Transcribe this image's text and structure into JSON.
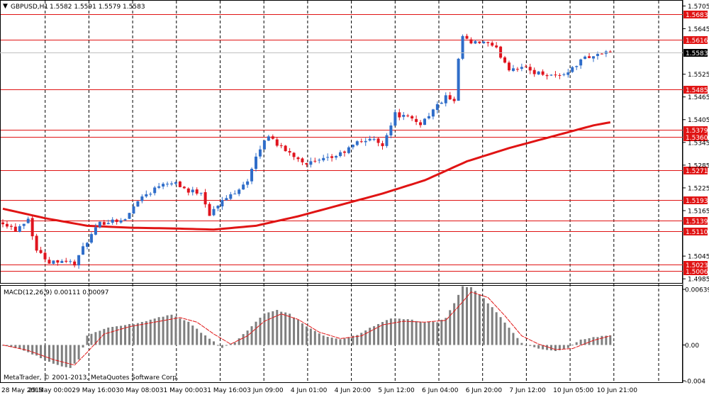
{
  "header": {
    "arrow": "▼",
    "symbol": "GBPUSD,H1",
    "ohlc": "1.5582 1.5591 1.5579 1.5583"
  },
  "macd": {
    "label": "MACD(12,26,9) 0.00111 0.00097"
  },
  "copyright": "MetaTrader, © 2001-2013, MetaQuotes Software Corp.",
  "colors": {
    "bull": "#2f6dc9",
    "bear": "#e0141e",
    "level_line": "#e01414",
    "ma": "#e01414",
    "histogram": "#7f7f7f",
    "signal": "#e01414",
    "current_price_bg": "#000000"
  },
  "chart_data": [
    {
      "type": "candlestick",
      "title": "GBPUSD,H1",
      "y_ticks": [
        "1.5705",
        "1.5645",
        "1.5525",
        "1.5465",
        "1.5405",
        "1.5345",
        "1.5285",
        "1.5225",
        "1.5165",
        "1.5045",
        "1.4985"
      ],
      "ylim": [
        1.4976,
        1.5717
      ],
      "current_price": "1.5583",
      "levels": [
        "1.5683",
        "1.5616",
        "1.5485",
        "1.5379",
        "1.5360",
        "1.5271",
        "1.5193",
        "1.5139",
        "1.5110",
        "1.5023",
        "1.5006"
      ],
      "x_labels": [
        "28 May 2013",
        "29 May 00:00",
        "29 May 16:00",
        "30 May 08:00",
        "31 May 00:00",
        "31 May 16:00",
        "3 Jun 09:00",
        "4 Jun 01:00",
        "4 Jun 20:00",
        "5 Jun 12:00",
        "6 Jun 04:00",
        "6 Jun 20:00",
        "7 Jun 12:00",
        "10 Jun 05:00",
        "10 Jun 21:00"
      ],
      "price_path": [
        [
          0,
          1.5135
        ],
        [
          3,
          1.5115
        ],
        [
          6,
          1.5145
        ],
        [
          8,
          1.506
        ],
        [
          11,
          1.503
        ],
        [
          14,
          1.5035
        ],
        [
          17,
          1.5025
        ],
        [
          20,
          1.5085
        ],
        [
          23,
          1.513
        ],
        [
          26,
          1.514
        ],
        [
          29,
          1.514
        ],
        [
          32,
          1.5195
        ],
        [
          35,
          1.5215
        ],
        [
          38,
          1.524
        ],
        [
          41,
          1.524
        ],
        [
          44,
          1.5215
        ],
        [
          47,
          1.5215
        ],
        [
          49,
          1.5155
        ],
        [
          52,
          1.519
        ],
        [
          55,
          1.5215
        ],
        [
          58,
          1.5245
        ],
        [
          61,
          1.533
        ],
        [
          63,
          1.5365
        ],
        [
          66,
          1.533
        ],
        [
          69,
          1.531
        ],
        [
          72,
          1.529
        ],
        [
          75,
          1.5295
        ],
        [
          78,
          1.5305
        ],
        [
          81,
          1.532
        ],
        [
          84,
          1.5345
        ],
        [
          87,
          1.5355
        ],
        [
          90,
          1.534
        ],
        [
          93,
          1.542
        ],
        [
          96,
          1.541
        ],
        [
          99,
          1.5395
        ],
        [
          102,
          1.543
        ],
        [
          105,
          1.5465
        ],
        [
          107,
          1.545
        ],
        [
          108,
          1.556
        ],
        [
          109,
          1.5625
        ],
        [
          111,
          1.5605
        ],
        [
          114,
          1.561
        ],
        [
          117,
          1.559
        ],
        [
          120,
          1.554
        ],
        [
          123,
          1.5545
        ],
        [
          126,
          1.553
        ],
        [
          129,
          1.5525
        ],
        [
          132,
          1.552
        ],
        [
          135,
          1.554
        ],
        [
          138,
          1.557
        ],
        [
          141,
          1.5575
        ],
        [
          143,
          1.5585
        ],
        [
          144,
          1.5583
        ]
      ],
      "ma_path": [
        [
          0,
          1.517
        ],
        [
          10,
          1.5145
        ],
        [
          20,
          1.5125
        ],
        [
          30,
          1.512
        ],
        [
          40,
          1.5118
        ],
        [
          50,
          1.5115
        ],
        [
          60,
          1.5125
        ],
        [
          70,
          1.515
        ],
        [
          80,
          1.518
        ],
        [
          90,
          1.521
        ],
        [
          100,
          1.5245
        ],
        [
          110,
          1.5295
        ],
        [
          120,
          1.533
        ],
        [
          130,
          1.536
        ],
        [
          140,
          1.539
        ],
        [
          144,
          1.5398
        ]
      ]
    },
    {
      "type": "bar",
      "title": "MACD(12,26,9) 0.00111 0.00097",
      "y_ticks": [
        "0.00639",
        "0.00",
        "-0.004"
      ],
      "ylim": [
        -0.004,
        0.0064
      ],
      "macd_path": [
        [
          0,
          0.0
        ],
        [
          4,
          -0.0004
        ],
        [
          8,
          -0.0012
        ],
        [
          12,
          -0.0021
        ],
        [
          16,
          -0.0025
        ],
        [
          18,
          -0.0016
        ],
        [
          20,
          0.001
        ],
        [
          24,
          0.0018
        ],
        [
          28,
          0.0021
        ],
        [
          32,
          0.0024
        ],
        [
          36,
          0.0029
        ],
        [
          40,
          0.0033
        ],
        [
          44,
          0.0025
        ],
        [
          48,
          0.001
        ],
        [
          52,
          -0.0003
        ],
        [
          55,
          0.0003
        ],
        [
          58,
          0.0016
        ],
        [
          62,
          0.0034
        ],
        [
          65,
          0.0038
        ],
        [
          68,
          0.0034
        ],
        [
          72,
          0.002
        ],
        [
          76,
          0.001
        ],
        [
          80,
          0.0006
        ],
        [
          84,
          0.0011
        ],
        [
          88,
          0.0021
        ],
        [
          92,
          0.0029
        ],
        [
          96,
          0.0028
        ],
        [
          100,
          0.0025
        ],
        [
          103,
          0.0025
        ],
        [
          105,
          0.003
        ],
        [
          107,
          0.0046
        ],
        [
          109,
          0.0064
        ],
        [
          111,
          0.0063
        ],
        [
          114,
          0.0051
        ],
        [
          117,
          0.0036
        ],
        [
          120,
          0.0019
        ],
        [
          123,
          0.0002
        ],
        [
          127,
          -0.0004
        ],
        [
          131,
          -0.0007
        ],
        [
          134,
          -0.0003
        ],
        [
          137,
          0.0006
        ],
        [
          141,
          0.0009
        ],
        [
          144,
          0.0011
        ]
      ],
      "signal_path": [
        [
          0,
          0.0
        ],
        [
          6,
          -0.0006
        ],
        [
          12,
          -0.0016
        ],
        [
          17,
          -0.0022
        ],
        [
          20,
          -0.0008
        ],
        [
          24,
          0.0012
        ],
        [
          30,
          0.002
        ],
        [
          36,
          0.0025
        ],
        [
          42,
          0.003
        ],
        [
          46,
          0.0025
        ],
        [
          50,
          0.0012
        ],
        [
          54,
          0.0001
        ],
        [
          58,
          0.001
        ],
        [
          62,
          0.0026
        ],
        [
          66,
          0.0034
        ],
        [
          70,
          0.0028
        ],
        [
          75,
          0.0014
        ],
        [
          80,
          0.0007
        ],
        [
          85,
          0.001
        ],
        [
          90,
          0.0022
        ],
        [
          95,
          0.0026
        ],
        [
          100,
          0.0025
        ],
        [
          105,
          0.0027
        ],
        [
          108,
          0.0042
        ],
        [
          111,
          0.0058
        ],
        [
          115,
          0.0052
        ],
        [
          119,
          0.0032
        ],
        [
          123,
          0.001
        ],
        [
          127,
          0.0001
        ],
        [
          131,
          -0.0005
        ],
        [
          135,
          -0.0004
        ],
        [
          140,
          0.0005
        ],
        [
          144,
          0.001
        ]
      ]
    }
  ]
}
